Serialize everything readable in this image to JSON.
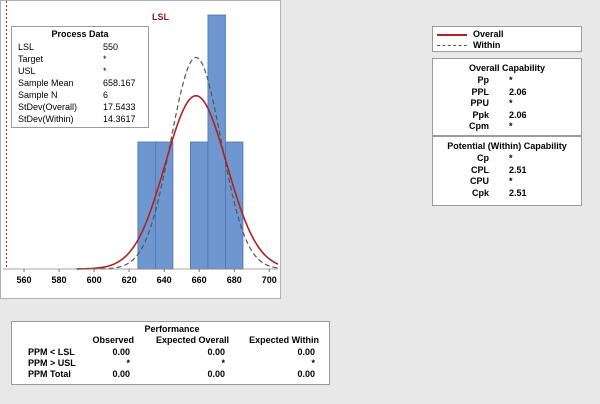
{
  "lsl_label": "LSL",
  "process_data": {
    "title": "Process Data",
    "rows": [
      {
        "k": "LSL",
        "v": "550"
      },
      {
        "k": "Target",
        "v": "*"
      },
      {
        "k": "USL",
        "v": "*"
      },
      {
        "k": "Sample Mean",
        "v": "658.167"
      },
      {
        "k": "Sample N",
        "v": "6"
      },
      {
        "k": "StDev(Overall)",
        "v": "17.5433"
      },
      {
        "k": "StDev(Within)",
        "v": "14.3617"
      }
    ]
  },
  "legend": {
    "overall": "Overall",
    "within": "Within",
    "overall_color": "#b22222",
    "within_color": "#555555"
  },
  "overall_capability": {
    "title": "Overall Capability",
    "rows": [
      {
        "k": "Pp",
        "v": "*"
      },
      {
        "k": "PPL",
        "v": "2.06"
      },
      {
        "k": "PPU",
        "v": "*"
      },
      {
        "k": "Ppk",
        "v": "2.06"
      },
      {
        "k": "Cpm",
        "v": "*"
      }
    ]
  },
  "within_capability": {
    "title": "Potential (Within) Capability",
    "rows": [
      {
        "k": "Cp",
        "v": "*"
      },
      {
        "k": "CPL",
        "v": "2.51"
      },
      {
        "k": "CPU",
        "v": "*"
      },
      {
        "k": "Cpk",
        "v": "2.51"
      }
    ]
  },
  "performance": {
    "title": "Performance",
    "columns": [
      "Observed",
      "Expected Overall",
      "Expected Within"
    ],
    "rows": [
      {
        "label": "PPM < LSL",
        "values": [
          "0.00",
          "0.00",
          "0.00"
        ]
      },
      {
        "label": "PPM > USL",
        "values": [
          "*",
          "*",
          "*"
        ]
      },
      {
        "label": "PPM Total",
        "values": [
          "0.00",
          "0.00",
          "0.00"
        ]
      }
    ]
  },
  "chart_data": {
    "type": "bar",
    "x_ticks": [
      560,
      580,
      600,
      620,
      640,
      660,
      680,
      700
    ],
    "xlim": [
      548,
      705
    ],
    "bin_width": 10,
    "bars": [
      {
        "x0": 625,
        "x1": 635,
        "count": 1
      },
      {
        "x0": 635,
        "x1": 645,
        "count": 1
      },
      {
        "x0": 655,
        "x1": 665,
        "count": 1
      },
      {
        "x0": 665,
        "x1": 675,
        "count": 2
      },
      {
        "x0": 675,
        "x1": 685,
        "count": 1
      }
    ],
    "ymax": 2,
    "lsl": 550,
    "mean": 658.167,
    "sd_overall": 17.5433,
    "sd_within": 14.3617,
    "bar_color": "#6f97cf"
  }
}
